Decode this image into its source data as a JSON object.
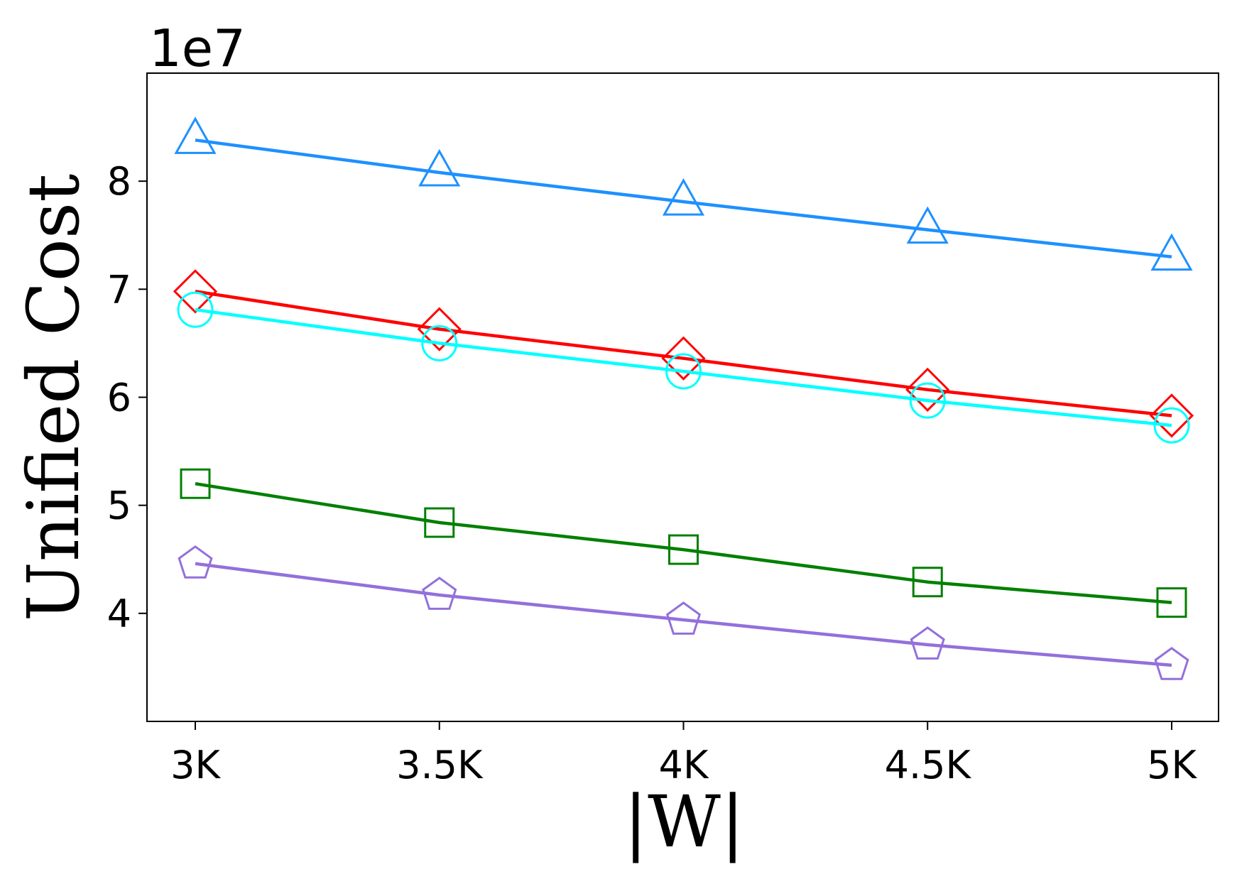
{
  "chart_data": {
    "type": "line",
    "xlabel": "|W|",
    "ylabel": "Unified Cost",
    "y_offset_label": "1e7",
    "x": [
      3000,
      3500,
      4000,
      4500,
      5000
    ],
    "x_tick_labels": [
      "3K",
      "3.5K",
      "4K",
      "4.5K",
      "5K"
    ],
    "y_ticks": [
      4,
      5,
      6,
      7,
      8
    ],
    "y_tick_labels": [
      "4",
      "5",
      "6",
      "7",
      "8"
    ],
    "ylim": [
      3.0,
      9.0
    ],
    "grid": false,
    "legend": "none",
    "series": [
      {
        "color": "#1e90ff",
        "marker": "triangle",
        "values": [
          8.38,
          8.08,
          7.81,
          7.55,
          7.3
        ]
      },
      {
        "color": "#ff0000",
        "marker": "diamond",
        "values": [
          6.98,
          6.63,
          6.36,
          6.07,
          5.83
        ]
      },
      {
        "color": "#00ffff",
        "marker": "circle",
        "values": [
          6.81,
          6.5,
          6.24,
          5.97,
          5.74
        ]
      },
      {
        "color": "#008000",
        "marker": "square",
        "values": [
          5.2,
          4.84,
          4.59,
          4.29,
          4.1
        ]
      },
      {
        "color": "#9370db",
        "marker": "pentagon",
        "values": [
          4.46,
          4.17,
          3.94,
          3.71,
          3.52
        ]
      }
    ]
  }
}
